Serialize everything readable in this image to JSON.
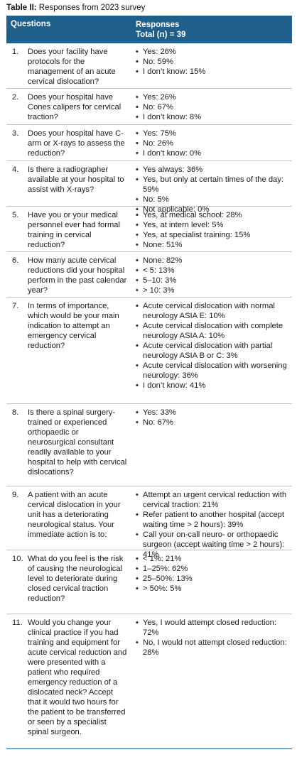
{
  "caption": {
    "label": "Table II:",
    "text": " Responses from 2023 survey"
  },
  "header": {
    "questions": "Questions",
    "responses_line1": "Responses",
    "responses_line2": "Total (n) = 39"
  },
  "rows": [
    {
      "num": "1.",
      "question": "Does your facility have protocols for the management of an acute cervical dislocation?",
      "answers": [
        "Yes: 26%",
        "No: 59%",
        "I don’t know: 15%"
      ]
    },
    {
      "num": "2.",
      "question": "Does your hospital have Cones calipers for cervical traction?",
      "answers": [
        "Yes: 26%",
        "No: 67%",
        "I don’t know: 8%"
      ]
    },
    {
      "num": "3.",
      "question": "Does your hospital have C-arm or X-rays to assess the reduction?",
      "answers": [
        "Yes: 75%",
        "No: 26%",
        "I don’t know: 0%"
      ]
    },
    {
      "num": "4.",
      "question": "Is there a radiographer available at your hospital to assist with X-rays?",
      "answers": [
        "Yes always: 36%",
        "Yes, but only at certain times of the day: 59%",
        "No: 5%",
        "Not applicable: 0%"
      ]
    },
    {
      "num": "5.",
      "question": "Have you or your medical personnel ever had formal training in cervical reduction?",
      "answers": [
        "Yes, at medical school: 28%",
        "Yes, at intern level: 5%",
        "Yes, at specialist training: 15%",
        "None: 51%"
      ]
    },
    {
      "num": "6.",
      "question": "How many acute cervical reductions did your hospital perform in the past calendar year?",
      "answers": [
        "None: 82%",
        "< 5: 13%",
        "5–10: 3%",
        "> 10: 3%"
      ]
    },
    {
      "num": "7.",
      "question": "In terms of importance, which would be your main indication to attempt an emergency cervical reduction?",
      "answers": [
        "Acute cervical dislocation with normal neurology ASIA E: 10%",
        "Acute cervical dislocation with complete neurology ASIA A: 10%",
        "Acute cervical dislocation with partial neurology ASIA B or C: 3%",
        "Acute cervical dislocation with worsening neurology: 36%",
        "I don’t know: 41%"
      ]
    },
    {
      "num": "8.",
      "question": "Is there a spinal surgery-trained or experienced orthopaedic or neurosurgical consultant readily available to your hospital to help with cervical dislocations?",
      "answers": [
        "Yes: 33%",
        "No: 67%"
      ]
    },
    {
      "num": "9.",
      "question": "A patient with an acute cervical dislocation in your unit has a deteriorating neurological status. Your immediate action is to:",
      "answers": [
        "Attempt an urgent cervical reduction with cervical traction: 21%",
        "Refer patient to another hospital (accept waiting time > 2 hours): 39%",
        "Call your on-call neuro- or orthopaedic surgeon (accept waiting time > 2 hours): 41%"
      ]
    },
    {
      "num": "10.",
      "question": "What do you feel is the risk of causing the neurological level to deteriorate during closed cervical traction reduction?",
      "answers": [
        "< 1%: 21%",
        "1–25%: 62%",
        "25–50%: 13%",
        "> 50%: 5%"
      ]
    },
    {
      "num": "11.",
      "question": "Would you change your clinical practice if you had training and equipment for acute cervical reduction and were presented with a patient who required emergency reduction of a dislocated neck? Accept that it would two hours for the patient to be transferred or seen by a specialist spinal surgeon.",
      "answers": [
        "Yes, I would attempt closed reduction: 72%",
        "No, I would not attempt closed reduction: 28%"
      ]
    }
  ]
}
